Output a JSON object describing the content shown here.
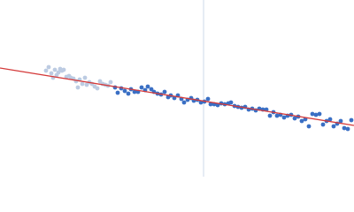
{
  "chart_data": {
    "type": "scatter",
    "xlim": [
      0,
      400
    ],
    "ylim": [
      0,
      200
    ],
    "vline": 230,
    "vline_color": "#cdd8ea",
    "series": [
      {
        "kind": "scatter",
        "color": "#bccbe2",
        "x": [
          52,
          55,
          58,
          60,
          62,
          64,
          66,
          68,
          70,
          72,
          75,
          78,
          80,
          83,
          86,
          88,
          90,
          93,
          96,
          98,
          101,
          104,
          107,
          110,
          113,
          116,
          119,
          122,
          125
        ],
        "values": [
          120,
          124,
          117,
          112,
          121,
          115,
          118,
          122,
          120,
          121,
          113,
          114,
          112,
          111,
          108,
          101,
          110,
          105,
          112,
          104,
          107,
          105,
          102,
          100,
          108,
          105,
          104,
          103,
          107
        ]
      },
      {
        "kind": "scatter",
        "color": "#3a6fc4",
        "x": [
          130,
          133,
          137,
          141,
          145,
          148,
          152,
          156,
          160,
          164,
          167,
          171,
          174,
          178,
          182,
          186,
          190,
          193,
          197,
          201,
          205,
          208,
          212,
          216,
          219,
          223,
          227,
          231,
          235,
          238,
          242,
          246,
          250,
          254,
          258,
          261,
          265,
          269,
          273,
          277,
          281,
          285,
          289,
          293,
          297,
          301,
          305,
          309,
          313,
          317,
          321,
          325,
          329,
          333,
          337,
          341,
          345,
          349,
          353,
          357,
          361,
          365,
          369,
          373,
          377,
          381,
          385,
          389,
          393,
          397
        ],
        "values": [
          101,
          95,
          100,
          97,
          94,
          99,
          96,
          96,
          101,
          98,
          102,
          99,
          96,
          94,
          93,
          96,
          90,
          92,
          89,
          92,
          88,
          84,
          87,
          89,
          86,
          87,
          84,
          85,
          88,
          82,
          82,
          81,
          83,
          82,
          83,
          84,
          80,
          79,
          78,
          79,
          76,
          77,
          75,
          77,
          76,
          76,
          69,
          73,
          69,
          70,
          67,
          69,
          70,
          66,
          68,
          63,
          65,
          57,
          71,
          70,
          71,
          59,
          63,
          65,
          57,
          60,
          63,
          55,
          54,
          64
        ]
      },
      {
        "kind": "line",
        "color": "#d43a3a",
        "x": [
          0,
          400
        ],
        "values": [
          123,
          58
        ]
      }
    ]
  }
}
